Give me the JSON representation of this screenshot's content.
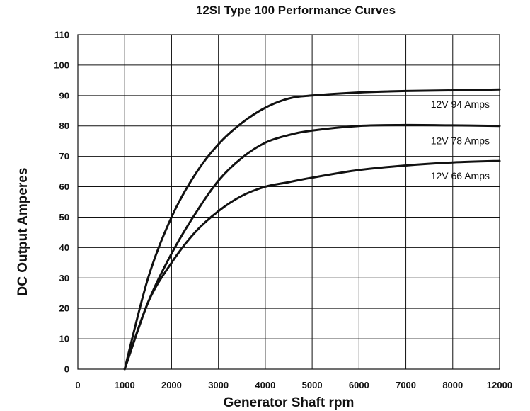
{
  "chart_data": {
    "type": "line",
    "title": "12SI Type 100 Performance Curves",
    "xlabel": "Generator Shaft rpm",
    "ylabel": "DC Output Amperes",
    "xlim": [
      0,
      12000
    ],
    "ylim": [
      0,
      110
    ],
    "x_ticks": [
      0,
      1000,
      2000,
      3000,
      4000,
      5000,
      6000,
      7000,
      8000,
      12000
    ],
    "x_tick_labels": [
      "0",
      "1000",
      "2000",
      "3000",
      "4000",
      "5000",
      "6000",
      "7000",
      "8000",
      "12000"
    ],
    "y_ticks": [
      0,
      10,
      20,
      30,
      40,
      50,
      60,
      70,
      80,
      90,
      100,
      110
    ],
    "y_tick_labels": [
      "0",
      "10",
      "20",
      "30",
      "40",
      "50",
      "60",
      "70",
      "80",
      "90",
      "100",
      "110"
    ],
    "grid": true,
    "series": [
      {
        "name": "12V 94 Amps",
        "x": [
          1000,
          1500,
          2000,
          2500,
          3000,
          3500,
          4000,
          4500,
          5000,
          6000,
          7000,
          8000,
          12000
        ],
        "y": [
          0,
          30,
          50,
          64,
          74,
          81,
          86,
          89,
          90,
          91,
          91.5,
          91.7,
          92
        ]
      },
      {
        "name": "12V 78 Amps",
        "x": [
          1000,
          1500,
          2000,
          2500,
          3000,
          3500,
          4000,
          4500,
          5000,
          6000,
          7000,
          8000,
          12000
        ],
        "y": [
          0,
          22,
          38,
          51,
          62,
          69.5,
          74.5,
          77,
          78.5,
          80,
          80.3,
          80.2,
          80
        ]
      },
      {
        "name": "12V 66 Amps",
        "x": [
          1000,
          1500,
          2000,
          2500,
          3000,
          3500,
          4000,
          4500,
          5000,
          6000,
          7000,
          8000,
          12000
        ],
        "y": [
          0,
          22,
          35,
          45,
          52,
          57,
          60,
          61.5,
          63,
          65.5,
          67,
          68,
          68.5
        ]
      }
    ]
  }
}
